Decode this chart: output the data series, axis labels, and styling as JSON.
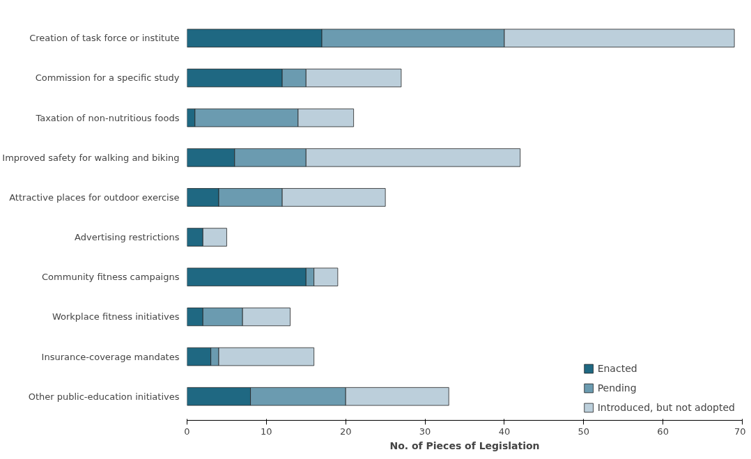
{
  "chart_data": {
    "type": "bar",
    "orientation": "horizontal",
    "stacked": true,
    "xlabel": "No. of Pieces of Legislation",
    "categories": [
      "Creation of task force or institute",
      "Commission for a specific study",
      "Taxation of non-nutritious foods",
      "Improved safety for walking and biking",
      "Attractive places for outdoor exercise",
      "Advertising restrictions",
      "Community fitness campaigns",
      "Workplace fitness initiatives",
      "Insurance-coverage mandates",
      "Other public-education initiatives"
    ],
    "series": [
      {
        "name": "Enacted",
        "color": "#1f6882",
        "values": [
          17,
          12,
          1,
          6,
          4,
          2,
          15,
          2,
          3,
          8
        ]
      },
      {
        "name": "Pending",
        "color": "#6b9bb0",
        "values": [
          23,
          3,
          13,
          9,
          8,
          0,
          1,
          5,
          1,
          12
        ]
      },
      {
        "name": "Introduced, but not adopted",
        "color": "#bccfdb",
        "values": [
          29,
          12,
          7,
          27,
          13,
          3,
          3,
          6,
          12,
          13
        ]
      }
    ],
    "xlim": [
      0,
      70
    ],
    "xticks": [
      0,
      10,
      20,
      30,
      40,
      50,
      60,
      70
    ],
    "grid": false,
    "legend": "bottom right"
  }
}
